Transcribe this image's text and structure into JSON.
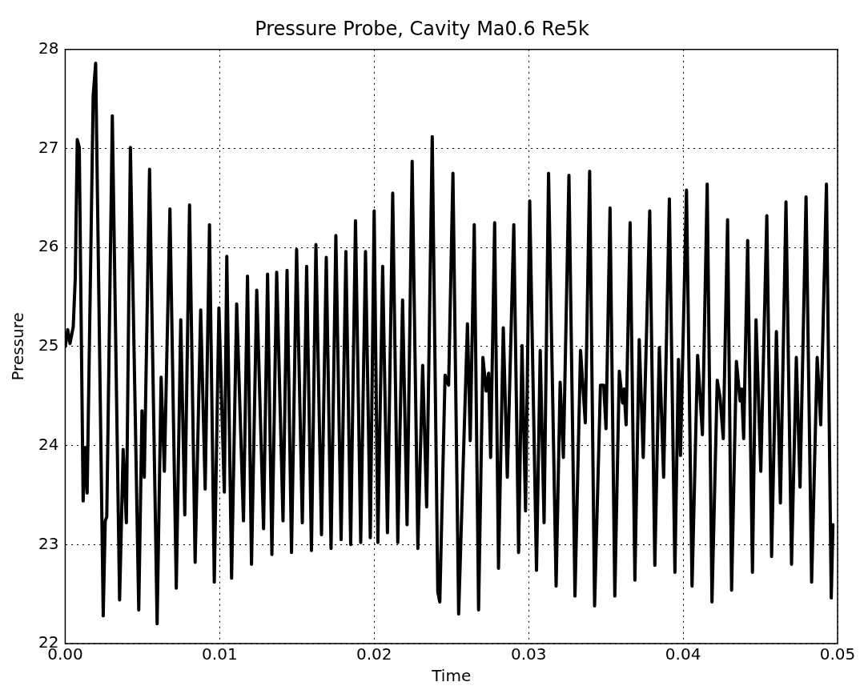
{
  "chart_data": {
    "type": "line",
    "title": "Pressure Probe, Cavity Ma0.6 Re5k",
    "xlabel": "Time",
    "ylabel": "Pressure",
    "xlim": [
      0,
      0.05
    ],
    "xticks": [
      {
        "value": 0,
        "label": "0.00"
      },
      {
        "value": 0.01,
        "label": "0.01"
      },
      {
        "value": 0.02,
        "label": "0.02"
      },
      {
        "value": 0.03,
        "label": "0.03"
      },
      {
        "value": 0.04,
        "label": "0.04"
      },
      {
        "value": 0.05,
        "label": "0.05"
      }
    ],
    "ylim": [
      22,
      28
    ],
    "yticks": [
      22,
      23,
      24,
      25,
      26,
      27,
      28
    ],
    "grid": true,
    "legend": false,
    "marker": "none",
    "line_style": "solid",
    "series": [
      {
        "color": "#000000",
        "x": [
          0,
          0.00016,
          0.00031,
          0.00052,
          0.00065,
          0.00078,
          0.00091,
          0.00116,
          0.00129,
          0.00142,
          0.00181,
          0.00197,
          0.00246,
          0.00259,
          0.00269,
          0.00305,
          0.00352,
          0.00375,
          0.00396,
          0.00422,
          0.00476,
          0.00497,
          0.00512,
          0.00546,
          0.00595,
          0.00621,
          0.00642,
          0.00678,
          0.00719,
          0.00748,
          0.00774,
          0.00805,
          0.00841,
          0.00877,
          0.00906,
          0.00934,
          0.00965,
          0.00995,
          0.0103,
          0.01046,
          0.01077,
          0.0111,
          0.01154,
          0.0118,
          0.01206,
          0.0124,
          0.01284,
          0.0131,
          0.01338,
          0.01369,
          0.0141,
          0.01436,
          0.01465,
          0.01498,
          0.01535,
          0.01563,
          0.01594,
          0.01623,
          0.01659,
          0.0169,
          0.01721,
          0.01752,
          0.01786,
          0.01817,
          0.01848,
          0.01879,
          0.01913,
          0.01944,
          0.01975,
          0.02,
          0.02024,
          0.02055,
          0.02086,
          0.0212,
          0.02153,
          0.02184,
          0.02213,
          0.02246,
          0.02283,
          0.02314,
          0.0234,
          0.02376,
          0.02412,
          0.02425,
          0.02459,
          0.02482,
          0.0251,
          0.02547,
          0.02604,
          0.02622,
          0.02648,
          0.02676,
          0.02704,
          0.02725,
          0.02741,
          0.02754,
          0.0278,
          0.02805,
          0.02836,
          0.02862,
          0.02904,
          0.02935,
          0.02957,
          0.0298,
          0.03007,
          0.03051,
          0.03075,
          0.031,
          0.03129,
          0.03178,
          0.03204,
          0.03225,
          0.03261,
          0.033,
          0.03336,
          0.03367,
          0.03395,
          0.03427,
          0.03465,
          0.03486,
          0.03501,
          0.03527,
          0.03558,
          0.03587,
          0.03608,
          0.03618,
          0.03631,
          0.03657,
          0.03688,
          0.03716,
          0.03742,
          0.03784,
          0.03817,
          0.03846,
          0.03874,
          0.03911,
          0.03947,
          0.0397,
          0.03983,
          0.04022,
          0.04058,
          0.04094,
          0.04125,
          0.04156,
          0.04187,
          0.04221,
          0.04239,
          0.0426,
          0.04288,
          0.04314,
          0.04345,
          0.04369,
          0.04379,
          0.04392,
          0.04418,
          0.04449,
          0.04472,
          0.04503,
          0.04542,
          0.04573,
          0.04604,
          0.0463,
          0.04666,
          0.04702,
          0.04733,
          0.04757,
          0.04796,
          0.04832,
          0.04868,
          0.04891,
          0.04928,
          0.04959,
          0.0497
        ],
        "values": [
          25.0,
          25.17,
          25.03,
          25.2,
          25.69,
          27.09,
          27.01,
          23.44,
          23.98,
          23.52,
          27.53,
          27.86,
          22.28,
          23.24,
          23.28,
          27.33,
          22.44,
          23.96,
          23.22,
          27.01,
          22.34,
          24.35,
          23.68,
          26.79,
          22.2,
          24.69,
          23.74,
          26.39,
          22.56,
          25.27,
          23.3,
          26.43,
          22.82,
          25.37,
          23.56,
          26.23,
          22.62,
          25.39,
          23.53,
          25.91,
          22.66,
          25.43,
          23.24,
          25.71,
          22.8,
          25.57,
          23.16,
          25.73,
          22.9,
          25.75,
          23.24,
          25.77,
          22.92,
          25.98,
          23.22,
          25.81,
          22.94,
          26.03,
          23.1,
          25.9,
          22.96,
          26.12,
          23.05,
          25.96,
          23.0,
          26.27,
          23.02,
          25.96,
          23.07,
          26.37,
          23.02,
          25.81,
          23.12,
          26.55,
          23.02,
          25.47,
          23.2,
          26.87,
          22.96,
          24.81,
          23.38,
          27.12,
          22.52,
          22.42,
          24.71,
          24.61,
          26.75,
          22.3,
          25.23,
          24.05,
          26.23,
          22.34,
          24.89,
          24.55,
          24.73,
          23.88,
          26.25,
          22.76,
          25.19,
          23.68,
          26.23,
          22.92,
          25.01,
          23.34,
          26.47,
          22.74,
          24.96,
          23.22,
          26.75,
          22.58,
          24.64,
          23.88,
          26.73,
          22.48,
          24.96,
          24.23,
          26.77,
          22.38,
          24.61,
          24.61,
          24.17,
          26.4,
          22.48,
          24.75,
          24.43,
          24.57,
          24.21,
          26.25,
          22.64,
          25.07,
          23.88,
          26.37,
          22.79,
          24.99,
          23.68,
          26.49,
          22.72,
          24.87,
          23.9,
          26.58,
          22.58,
          24.91,
          24.11,
          26.64,
          22.42,
          24.66,
          24.49,
          24.07,
          26.28,
          22.54,
          24.85,
          24.45,
          24.57,
          24.07,
          26.07,
          22.72,
          25.27,
          23.74,
          26.32,
          22.88,
          25.15,
          23.42,
          26.46,
          22.8,
          24.89,
          23.58,
          26.51,
          22.62,
          24.89,
          24.21,
          26.64,
          22.46,
          23.2
        ]
      }
    ]
  }
}
